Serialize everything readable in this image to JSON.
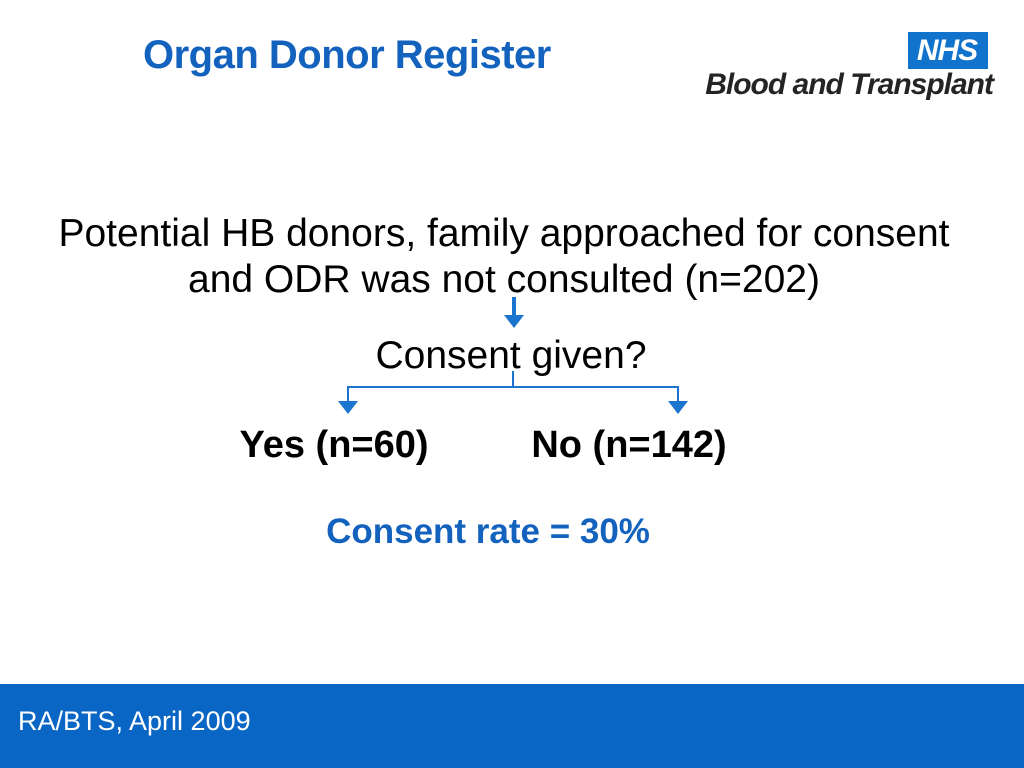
{
  "slide": {
    "header": {
      "title": "Organ Donor Register"
    },
    "logo": {
      "acronym": "NHS",
      "wordmark": "Blood and Transplant"
    },
    "diagram": {
      "intro_line1": "Potential HB donors, family approached for consent",
      "intro_line2": "and ODR was not consulted (n=202)",
      "question": "Consent given?",
      "yes_label": "Yes (n=60)",
      "no_label": "No (n=142)",
      "result": "Consent rate = 30%"
    },
    "footer": {
      "credit": "RA/BTS, April 2009"
    },
    "colors": {
      "title_blue": "#1262be",
      "arrow_blue": "#1b74ce",
      "footer_blue": "#0a66c4",
      "nhs_box_blue": "#1173cb",
      "wordmark_dark": "#262326"
    }
  }
}
